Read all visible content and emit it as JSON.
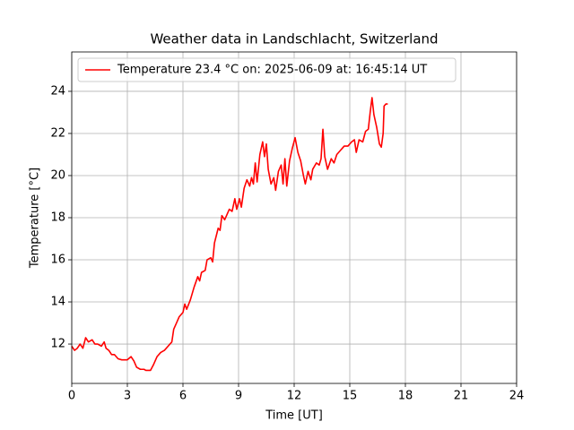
{
  "chart_data": {
    "type": "line",
    "title": "Weather data in Landschlacht, Switzerland",
    "xlabel": "Time [UT]",
    "ylabel": "Temperature [°C]",
    "xlim": [
      0,
      24
    ],
    "xticks": [
      0,
      3,
      6,
      9,
      12,
      15,
      18,
      21,
      24
    ],
    "ylim": [
      10.13,
      25.87
    ],
    "yticks": [
      12,
      14,
      16,
      18,
      20,
      22,
      24
    ],
    "grid": true,
    "legend": "upper left",
    "x": [
      0,
      0.15,
      0.3,
      0.45,
      0.6,
      0.75,
      0.9,
      1.1,
      1.25,
      1.4,
      1.6,
      1.75,
      1.85,
      2.0,
      2.15,
      2.3,
      2.5,
      2.7,
      3.0,
      3.2,
      3.35,
      3.5,
      3.7,
      3.9,
      4.0,
      4.25,
      4.4,
      4.6,
      4.8,
      5.0,
      5.2,
      5.4,
      5.5,
      5.65,
      5.8,
      6.0,
      6.1,
      6.2,
      6.4,
      6.6,
      6.8,
      6.9,
      7.0,
      7.2,
      7.3,
      7.5,
      7.6,
      7.7,
      7.9,
      8.0,
      8.1,
      8.25,
      8.35,
      8.5,
      8.65,
      8.8,
      8.9,
      9.05,
      9.15,
      9.3,
      9.45,
      9.6,
      9.7,
      9.8,
      9.9,
      10.0,
      10.15,
      10.3,
      10.4,
      10.5,
      10.6,
      10.75,
      10.9,
      11.0,
      11.15,
      11.3,
      11.4,
      11.5,
      11.6,
      11.75,
      11.9,
      12.05,
      12.2,
      12.35,
      12.5,
      12.6,
      12.75,
      12.9,
      13.0,
      13.2,
      13.35,
      13.45,
      13.55,
      13.65,
      13.8,
      14.0,
      14.15,
      14.3,
      14.5,
      14.7,
      14.9,
      15.1,
      15.25,
      15.35,
      15.5,
      15.7,
      15.85,
      16.0,
      16.1,
      16.2,
      16.3,
      16.45,
      16.6,
      16.7,
      16.8,
      16.85,
      16.95,
      17.05
    ],
    "series": [
      {
        "name": "Temperature 23.4 °C on: 2025-06-09 at: 16:45:14 UT",
        "color": "#ff0000",
        "values": [
          11.9,
          11.7,
          11.8,
          12.0,
          11.8,
          12.3,
          12.1,
          12.2,
          12.0,
          12.0,
          11.9,
          12.1,
          11.8,
          11.7,
          11.5,
          11.5,
          11.3,
          11.25,
          11.25,
          11.4,
          11.2,
          10.9,
          10.8,
          10.8,
          10.75,
          10.75,
          11.0,
          11.4,
          11.6,
          11.7,
          11.9,
          12.1,
          12.7,
          13.0,
          13.3,
          13.5,
          13.9,
          13.65,
          14.1,
          14.7,
          15.2,
          15.0,
          15.4,
          15.5,
          16.0,
          16.1,
          15.9,
          16.8,
          17.5,
          17.4,
          18.1,
          17.9,
          18.1,
          18.4,
          18.3,
          18.9,
          18.4,
          18.9,
          18.5,
          19.4,
          19.8,
          19.5,
          19.9,
          19.6,
          20.6,
          19.7,
          21.0,
          21.6,
          20.9,
          21.5,
          20.3,
          19.6,
          19.9,
          19.3,
          20.2,
          20.5,
          19.6,
          20.8,
          19.5,
          20.7,
          21.3,
          21.8,
          21.1,
          20.7,
          20.0,
          19.6,
          20.2,
          19.8,
          20.3,
          20.6,
          20.5,
          20.8,
          22.2,
          20.9,
          20.3,
          20.8,
          20.6,
          21.0,
          21.2,
          21.4,
          21.4,
          21.6,
          21.7,
          21.1,
          21.7,
          21.6,
          22.1,
          22.2,
          23.0,
          23.7,
          22.9,
          22.3,
          21.5,
          21.35,
          22.0,
          23.3,
          23.4,
          23.4
        ]
      }
    ]
  }
}
